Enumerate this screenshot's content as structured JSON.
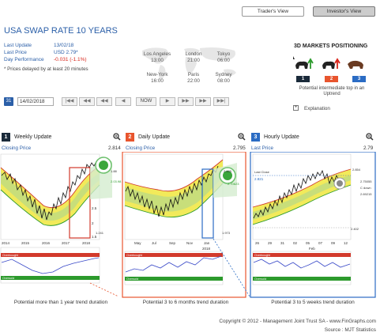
{
  "header": {
    "traders_view": "Trader's View",
    "investors_view": "Investor's View"
  },
  "title": "USA SWAP RATE 10 YEARS",
  "info": {
    "last_update_label": "Last Update",
    "last_update_value": "13/02/18",
    "last_price_label": "Last Price",
    "last_price_value": "USD 2.79*",
    "day_perf_label": "Day Performance",
    "day_perf_value": "-0.031 (-1.1%)",
    "note": "* Prices delayed by at least 20 minutes"
  },
  "cities": [
    {
      "name": "Los Angeles",
      "time": "13:00"
    },
    {
      "name": "London",
      "time": "21:00"
    },
    {
      "name": "Tokyo",
      "time": "06:00"
    },
    {
      "name": "New-York",
      "time": "16:00"
    },
    {
      "name": "Paris",
      "time": "22:00"
    },
    {
      "name": "Sydney",
      "time": "08:00"
    }
  ],
  "positioning": {
    "title": "3D MARKETS POSITIONING",
    "numbers": [
      "1",
      "2",
      "3"
    ],
    "description": "Potential intermediate top in an Uptrend",
    "explanation": "Explanation",
    "explanation_icon": "+"
  },
  "toolbar": {
    "calendar_icon": "31",
    "date": "14/02/2018",
    "now": "NOW"
  },
  "panels": [
    {
      "num": "1",
      "title": "Weekly Update",
      "label": "Closing Price",
      "value": "2.814",
      "footer": "Potential more than 1 year trend duration",
      "color": "#1a2a3a"
    },
    {
      "num": "2",
      "title": "Daily Update",
      "label": "Closing Price",
      "value": "2.795",
      "footer": "Potential 3 to 6 months trend duration",
      "color": "#e8552e"
    },
    {
      "num": "3",
      "title": "Hourly Update",
      "label": "Last Price",
      "value": "2.79",
      "footer": "Potential 3 to 5 weeks trend duration",
      "color": "#2b6cc4"
    }
  ],
  "chart_labels": {
    "weekly_x": [
      "2014",
      "2015",
      "2016",
      "2017",
      "2018"
    ],
    "daily_x": [
      "May",
      "Jul",
      "Sep",
      "Nov",
      "Jan"
    ],
    "daily_year": "2018",
    "hourly_x": [
      "26",
      "29",
      "31",
      "02",
      "05",
      "07",
      "09",
      "12"
    ],
    "hourly_month": "Feb",
    "overbought": "Overbought",
    "oversold": "Oversold",
    "weekly_y": [
      "3",
      "2.5",
      "2",
      "1.5"
    ],
    "weekly_low": "1.241",
    "weekly_callouts": [
      "1.88",
      "2.03.98"
    ],
    "daily_low": "1.973",
    "daily_callouts": [
      "2.885",
      "2.70623"
    ],
    "hourly_last_close": "Last Close",
    "hourly_last_close_val": "2.821",
    "hourly_callouts": [
      "2.854",
      "2.75055",
      "C down",
      "2.69215",
      "2.402"
    ]
  },
  "footer": {
    "copyright": "Copyright © 2012 - Management Joint Trust SA - www.FinGraphs.com",
    "source": "Source : MJT Statistics"
  }
}
